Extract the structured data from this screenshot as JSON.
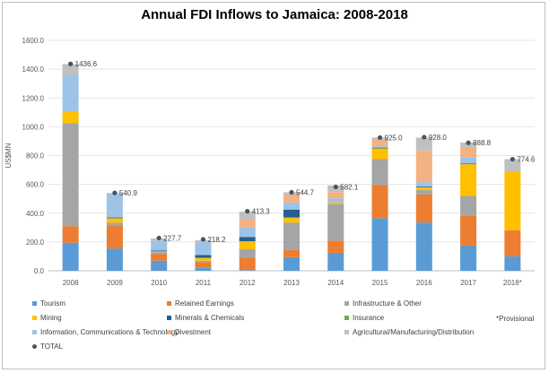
{
  "chart_data": {
    "type": "bar",
    "stacked": true,
    "title": "Annual FDI Inflows to Jamaica: 2008-2018",
    "xlabel": "",
    "ylabel": "US$MN",
    "ylim": [
      0,
      1600
    ],
    "yticks": [
      "0.0",
      "200.0",
      "400.0",
      "600.0",
      "800.0",
      "1000.0",
      "1200.0",
      "1400.0",
      "1600.0"
    ],
    "categories": [
      "2008",
      "2009",
      "2010",
      "2011",
      "2012",
      "2013",
      "2014",
      "2015",
      "2016",
      "2017",
      "2018*"
    ],
    "series": [
      {
        "name": "Tourism",
        "color": "#5b9bd5",
        "values": [
          195,
          155,
          70,
          20,
          5,
          95,
          125,
          365,
          335,
          175,
          100
        ]
      },
      {
        "name": "Retained Earnings",
        "color": "#ed7d31",
        "values": [
          115,
          160,
          45,
          40,
          85,
          50,
          85,
          230,
          195,
          205,
          180
        ]
      },
      {
        "name": "Infrastructure & Other",
        "color": "#a5a5a5",
        "values": [
          715,
          20,
          15,
          10,
          60,
          190,
          255,
          180,
          30,
          140,
          0
        ]
      },
      {
        "name": "Mining",
        "color": "#ffc000",
        "values": [
          80,
          30,
          5,
          20,
          55,
          35,
          10,
          75,
          20,
          220,
          410
        ]
      },
      {
        "name": "Minerals & Chemicals",
        "color": "#255e91",
        "values": [
          0,
          5,
          5,
          20,
          30,
          55,
          0,
          5,
          5,
          5,
          0
        ]
      },
      {
        "name": "Insurance",
        "color": "#70ad47",
        "values": [
          0,
          0,
          0,
          0,
          0,
          0,
          0,
          0,
          0,
          0,
          0
        ]
      },
      {
        "name": "Information, Communications & Technology",
        "color": "#9dc3e6",
        "values": [
          255,
          165,
          70,
          88,
          65,
          50,
          27,
          10,
          30,
          40,
          0
        ]
      },
      {
        "name": "Divestment",
        "color": "#f4b183",
        "values": [
          0,
          0,
          0,
          0,
          55,
          55,
          45,
          50,
          220,
          75,
          0
        ]
      },
      {
        "name": "Agricultural/Manufacturing/Distribution",
        "color": "#c0c0c0",
        "values": [
          75,
          5,
          15,
          15,
          55,
          15,
          45,
          10,
          90,
          30,
          85
        ]
      }
    ],
    "total": {
      "name": "TOTAL",
      "color": "#44546a",
      "values": [
        1436.6,
        540.9,
        227.7,
        218.2,
        413.3,
        544.7,
        582.1,
        925.0,
        928.0,
        888.8,
        774.6
      ],
      "labels": [
        "1436.6",
        "540.9",
        "227.7",
        "218.2",
        "413.3",
        "544.7",
        "582.1",
        "925.0",
        "928.0",
        "888.8",
        "774.6"
      ]
    },
    "legend_position": "bottom",
    "note": "*Provisional"
  }
}
